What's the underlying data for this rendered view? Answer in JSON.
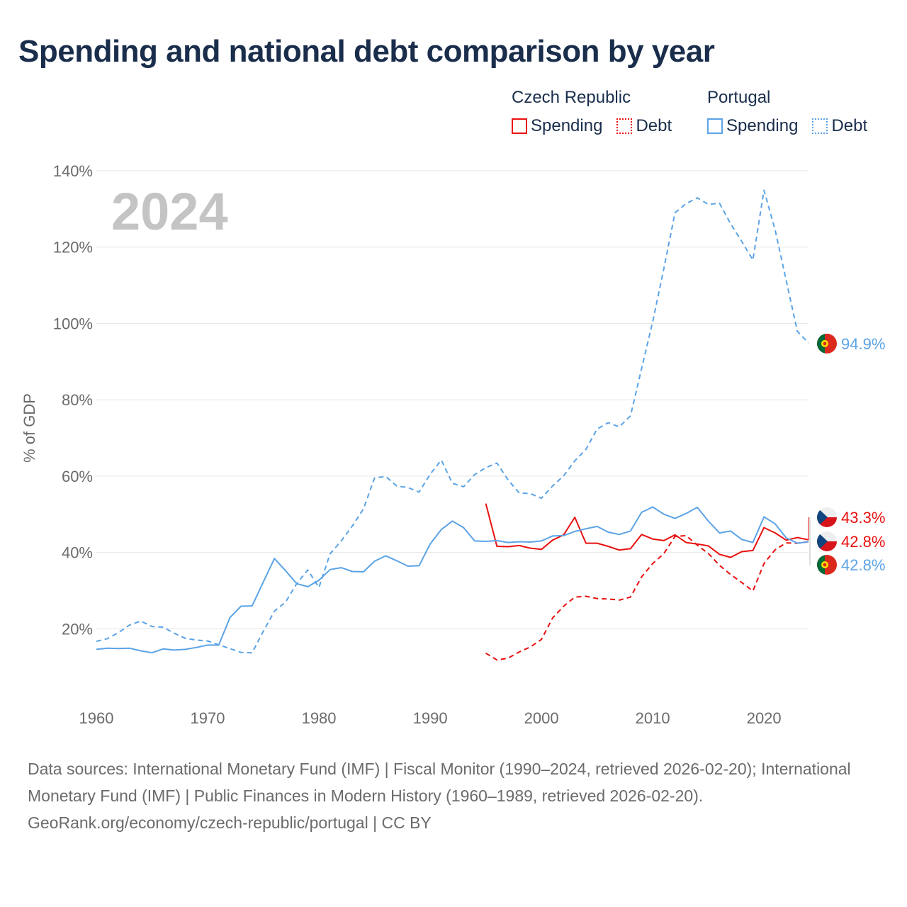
{
  "title": "Spending and national debt comparison by year",
  "legend": {
    "czech_title": "Czech Republic",
    "portugal_title": "Portugal",
    "spending_label": "Spending",
    "debt_label": "Debt"
  },
  "colors": {
    "czech": "#e8110f",
    "portugal": "#5ba3e6"
  },
  "footer": {
    "sources": "Data sources: International Monetary Fund (IMF) | Fiscal Monitor (1990–2024, retrieved 2026-02-20); International Monetary Fund (IMF) | Public Finances in Modern History (1960–1989, retrieved 2026-02-20).",
    "credit": "GeoRank.org/economy/czech-republic/portugal | CC BY"
  },
  "chart_data": {
    "type": "line",
    "title": "Spending and national debt comparison by year",
    "year_label": "2024",
    "ylabel": "% of GDP",
    "xlabel": "",
    "xlim": [
      1960,
      2024
    ],
    "ylim": [
      0,
      140
    ],
    "xticks": [
      1960,
      1970,
      1980,
      1990,
      2000,
      2010,
      2020
    ],
    "yticks": [
      20,
      40,
      60,
      80,
      100,
      120,
      140
    ],
    "ytick_labels": [
      "20%",
      "40%",
      "60%",
      "80%",
      "100%",
      "120%",
      "140%"
    ],
    "grid": true,
    "legend_position": "top-right",
    "end_labels": {
      "pt_debt": "94.9%",
      "cz_spending": "43.3%",
      "cz_debt": "42.8%",
      "pt_spending": "42.8%"
    },
    "series": [
      {
        "name": "Czech Republic Spending",
        "country": "Czech Republic",
        "metric": "Spending",
        "color": "#e8110f",
        "dash": "solid",
        "start": 1995,
        "values": [
          52.8,
          41.6,
          41.5,
          41.8,
          41.1,
          40.8,
          43.2,
          44.6,
          49.2,
          42.4,
          42.4,
          41.6,
          40.6,
          41.0,
          44.7,
          43.5,
          43.1,
          44.6,
          42.6,
          42.2,
          41.7,
          39.5,
          38.7,
          40.2,
          40.5,
          46.5,
          45.1,
          43.2,
          43.9,
          43.3
        ]
      },
      {
        "name": "Czech Republic Debt",
        "country": "Czech Republic",
        "metric": "Debt",
        "color": "#e8110f",
        "dash": "dashed",
        "start": 1995,
        "values": [
          13.6,
          11.8,
          12.3,
          13.9,
          15.2,
          17.2,
          22.8,
          25.9,
          28.3,
          28.5,
          27.9,
          27.8,
          27.5,
          28.3,
          33.6,
          37.1,
          39.7,
          44.2,
          44.4,
          41.9,
          39.7,
          36.6,
          34.2,
          32.1,
          29.9,
          37.1,
          40.7,
          42.5,
          42.4,
          42.8
        ]
      },
      {
        "name": "Portugal Spending",
        "country": "Portugal",
        "metric": "Spending",
        "color": "#5ba3e6",
        "dash": "solid",
        "start": 1960,
        "values": [
          14.6,
          14.9,
          14.8,
          14.9,
          14.2,
          13.7,
          14.7,
          14.4,
          14.6,
          15.1,
          15.7,
          15.7,
          22.9,
          25.9,
          26.0,
          32.2,
          38.4,
          35.2,
          31.8,
          31.0,
          32.7,
          35.5,
          36.0,
          35.0,
          34.9,
          37.7,
          39.1,
          37.8,
          36.4,
          36.5,
          42.2,
          46.0,
          48.2,
          46.5,
          43.0,
          42.9,
          43.1,
          42.6,
          42.8,
          42.7,
          43.0,
          44.3,
          44.4,
          45.5,
          46.2,
          46.8,
          45.3,
          44.7,
          45.6,
          50.5,
          51.9,
          50.0,
          48.9,
          50.2,
          51.8,
          48.2,
          45.1,
          45.6,
          43.4,
          42.6,
          49.3,
          47.5,
          43.8,
          42.4,
          42.8
        ]
      },
      {
        "name": "Portugal Debt",
        "country": "Portugal",
        "metric": "Debt",
        "color": "#5ba3e6",
        "dash": "dashed",
        "start": 1960,
        "values": [
          16.7,
          17.4,
          19.0,
          21.0,
          22.0,
          20.6,
          20.4,
          18.8,
          17.5,
          17.0,
          16.8,
          15.8,
          14.8,
          13.8,
          13.7,
          19.3,
          24.6,
          27.0,
          31.8,
          35.4,
          30.8,
          39.6,
          43.0,
          46.9,
          51.4,
          59.5,
          59.9,
          57.4,
          57.0,
          55.8,
          60.5,
          64.2,
          58.1,
          57.2,
          60.4,
          62.2,
          63.4,
          59.0,
          55.6,
          55.4,
          54.2,
          57.4,
          60.1,
          64.0,
          67.0,
          72.3,
          74.0,
          72.9,
          75.8,
          88.2,
          100.5,
          114.4,
          129.0,
          131.4,
          132.9,
          131.2,
          131.5,
          126.1,
          121.5,
          116.6,
          134.9,
          124.5,
          111.2,
          97.9,
          94.9
        ]
      }
    ]
  }
}
